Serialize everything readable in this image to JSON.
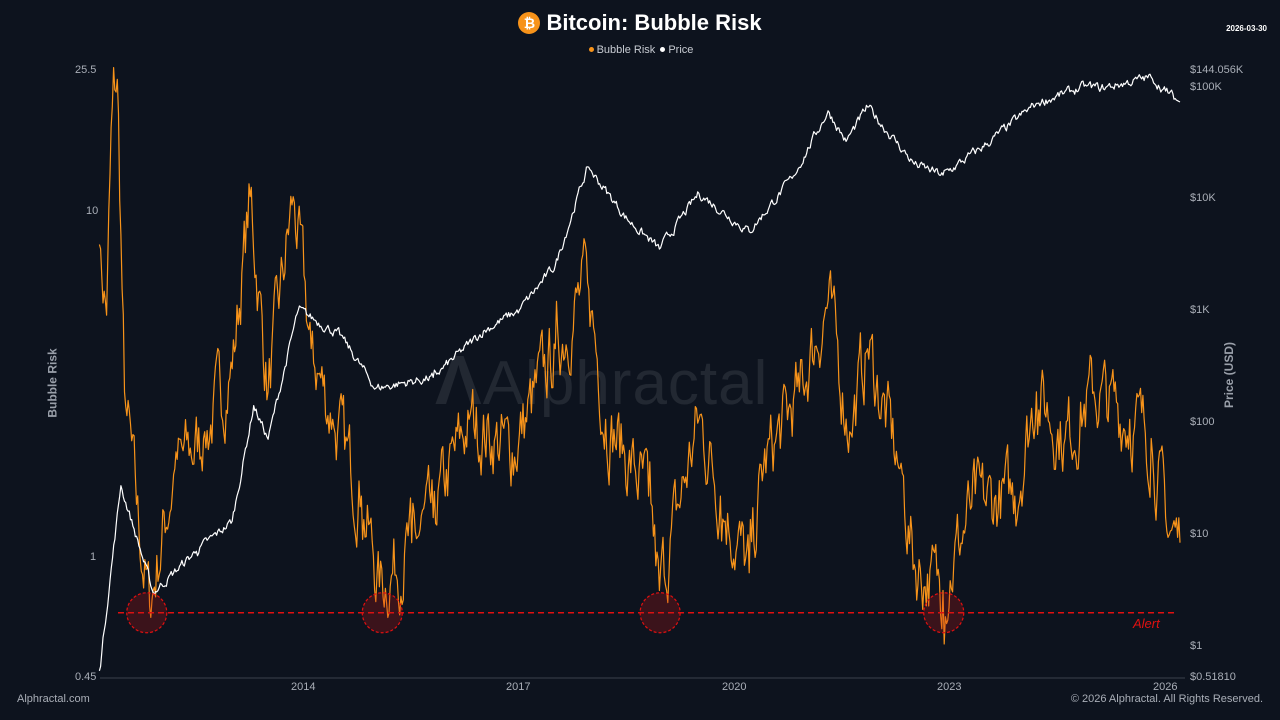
{
  "header": {
    "title": "Bitcoin: Bubble Risk",
    "icon": "bitcoin-icon",
    "date": "2026-03-30"
  },
  "legend": [
    {
      "label": "Bubble Risk",
      "color": "#f7931a"
    },
    {
      "label": "Price",
      "color": "#ffffff"
    }
  ],
  "watermark": "Alphractal",
  "footer": {
    "left": "Alphractal.com",
    "right": "© 2026 Alphractal. All Rights Reserved."
  },
  "chart_data": {
    "type": "line",
    "title": "Bitcoin: Bubble Risk",
    "ylabel": "Bubble Risk",
    "y2label": "Price (USD)",
    "ylim": [
      0.45,
      25.5
    ],
    "y2lim": [
      0.5181,
      144056
    ],
    "xlim": [
      2011.15,
      2026.25
    ],
    "xticks": [
      "2014",
      "2017",
      "2020",
      "2023",
      "2026"
    ],
    "yticks": [
      "25.5",
      "10",
      "1",
      "0.45"
    ],
    "y2ticks": [
      "$144.056K",
      "$100K",
      "$10K",
      "$1K",
      "$100",
      "$10",
      "$1",
      "$0.51810"
    ],
    "alert": {
      "label": "Alert",
      "value": 0.69,
      "color": "#e01010",
      "markers": [
        2011.81,
        2015.09,
        2018.96,
        2022.91
      ]
    },
    "series": [
      {
        "name": "Bubble Risk",
        "axis": "left",
        "color": "#f7931a",
        "points": [
          [
            2011.15,
            8
          ],
          [
            2011.25,
            5
          ],
          [
            2011.33,
            20
          ],
          [
            2011.4,
            24
          ],
          [
            2011.5,
            3
          ],
          [
            2011.7,
            1.2
          ],
          [
            2011.85,
            0.72
          ],
          [
            2012.2,
            1.8
          ],
          [
            2012.6,
            2.2
          ],
          [
            2013.0,
            3.5
          ],
          [
            2013.25,
            11
          ],
          [
            2013.5,
            3
          ],
          [
            2013.85,
            11
          ],
          [
            2014.1,
            4
          ],
          [
            2014.4,
            2.5
          ],
          [
            2014.8,
            1.5
          ],
          [
            2015.05,
            0.82
          ],
          [
            2015.5,
            1.1
          ],
          [
            2015.8,
            1.3
          ],
          [
            2016.3,
            2.5
          ],
          [
            2016.9,
            2.0
          ],
          [
            2017.5,
            4
          ],
          [
            2017.95,
            6.2
          ],
          [
            2018.2,
            2.5
          ],
          [
            2018.8,
            1.5
          ],
          [
            2018.95,
            0.8
          ],
          [
            2019.5,
            2.5
          ],
          [
            2019.8,
            1.5
          ],
          [
            2020.2,
            0.9
          ],
          [
            2020.4,
            1.8
          ],
          [
            2020.9,
            3
          ],
          [
            2021.3,
            5.5
          ],
          [
            2021.6,
            2.3
          ],
          [
            2021.85,
            4
          ],
          [
            2022.3,
            1.8
          ],
          [
            2022.5,
            0.95
          ],
          [
            2022.9,
            0.8
          ],
          [
            2023.3,
            1.4
          ],
          [
            2023.9,
            1.5
          ],
          [
            2024.2,
            3
          ],
          [
            2024.6,
            2.2
          ],
          [
            2025.0,
            3
          ],
          [
            2025.5,
            2.5
          ],
          [
            2025.8,
            2.2
          ],
          [
            2026.0,
            1.3
          ],
          [
            2026.2,
            1.1
          ]
        ]
      },
      {
        "name": "Price",
        "axis": "right",
        "color": "#ffffff",
        "points": [
          [
            2011.15,
            0.6
          ],
          [
            2011.45,
            27
          ],
          [
            2011.9,
            3
          ],
          [
            2012.5,
            7
          ],
          [
            2013.0,
            13
          ],
          [
            2013.3,
            140
          ],
          [
            2013.5,
            70
          ],
          [
            2013.92,
            1000
          ],
          [
            2014.5,
            600
          ],
          [
            2015.0,
            200
          ],
          [
            2015.8,
            250
          ],
          [
            2016.5,
            650
          ],
          [
            2017.0,
            1000
          ],
          [
            2017.5,
            2500
          ],
          [
            2017.95,
            19000
          ],
          [
            2018.5,
            6500
          ],
          [
            2018.95,
            3500
          ],
          [
            2019.5,
            11000
          ],
          [
            2020.2,
            5000
          ],
          [
            2020.8,
            15000
          ],
          [
            2021.3,
            60000
          ],
          [
            2021.55,
            32000
          ],
          [
            2021.85,
            65000
          ],
          [
            2022.5,
            20000
          ],
          [
            2022.9,
            16000
          ],
          [
            2023.5,
            30000
          ],
          [
            2024.2,
            70000
          ],
          [
            2024.9,
            100000
          ],
          [
            2025.1,
            95000
          ],
          [
            2025.8,
            120000
          ],
          [
            2026.0,
            90000
          ],
          [
            2026.2,
            72000
          ]
        ]
      }
    ]
  }
}
